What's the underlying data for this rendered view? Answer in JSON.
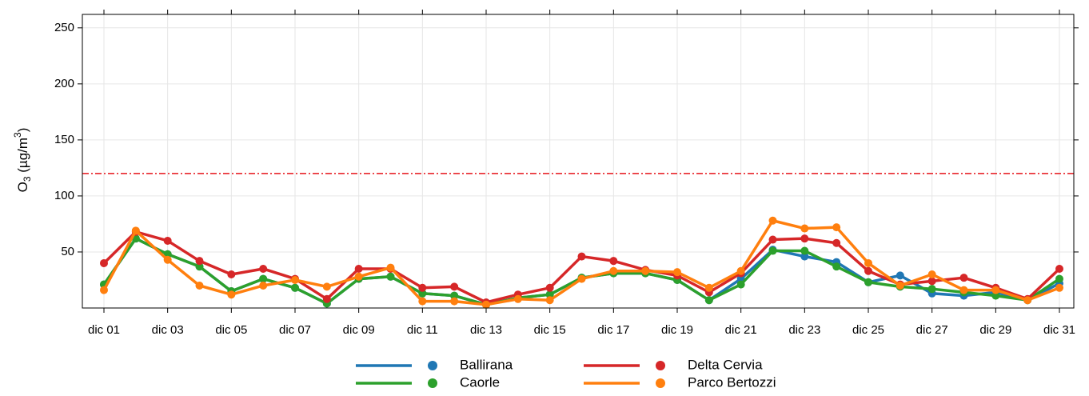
{
  "chart_data": {
    "type": "line",
    "ylabel": [
      "O",
      "3",
      " (µg/m",
      "3",
      ")"
    ],
    "categories": [
      "dic 01",
      null,
      "dic 03",
      null,
      "dic 05",
      null,
      "dic 07",
      null,
      "dic 09",
      null,
      "dic 11",
      null,
      "dic 13",
      null,
      "dic 15",
      null,
      "dic 17",
      null,
      "dic 19",
      null,
      "dic 21",
      null,
      "dic 23",
      null,
      "dic 25",
      null,
      "dic 27",
      null,
      "dic 29",
      null,
      "dic 31"
    ],
    "series": [
      {
        "name": "Ballirana",
        "color": "#1f77b4",
        "values": [
          21,
          62,
          48,
          37,
          15,
          26,
          18,
          4,
          26,
          28,
          13,
          11,
          3,
          9,
          12,
          27,
          31,
          31,
          25,
          7,
          26,
          52,
          46,
          41,
          23,
          29,
          13,
          11,
          14,
          7,
          22
        ]
      },
      {
        "name": "Caorle",
        "color": "#2ca02c",
        "values": [
          21,
          62,
          48,
          37,
          15,
          26,
          18,
          4,
          26,
          28,
          13,
          11,
          3,
          9,
          12,
          27,
          31,
          31,
          25,
          7,
          21,
          51,
          51,
          37,
          23,
          19,
          17,
          14,
          11,
          7,
          26
        ]
      },
      {
        "name": "Delta Cervia",
        "color": "#d62728",
        "values": [
          40,
          68,
          60,
          42,
          30,
          35,
          26,
          8,
          35,
          35,
          18,
          19,
          5,
          12,
          18,
          46,
          42,
          34,
          29,
          14,
          31,
          61,
          62,
          58,
          33,
          21,
          24,
          27,
          18,
          8,
          35
        ]
      },
      {
        "name": "Parco Bertozzi",
        "color": "#ff7f0e",
        "values": [
          16,
          69,
          43,
          20,
          12,
          20,
          25,
          19,
          28,
          36,
          6,
          6,
          3,
          8,
          7,
          26,
          33,
          33,
          32,
          18,
          33,
          78,
          71,
          72,
          40,
          20,
          30,
          16,
          16,
          7,
          18
        ]
      }
    ],
    "ylim": [
      0,
      262
    ],
    "yticks": [
      50,
      100,
      150,
      200,
      250
    ],
    "threshold": 120,
    "threshold_color": "#e8141b",
    "grid": true
  }
}
